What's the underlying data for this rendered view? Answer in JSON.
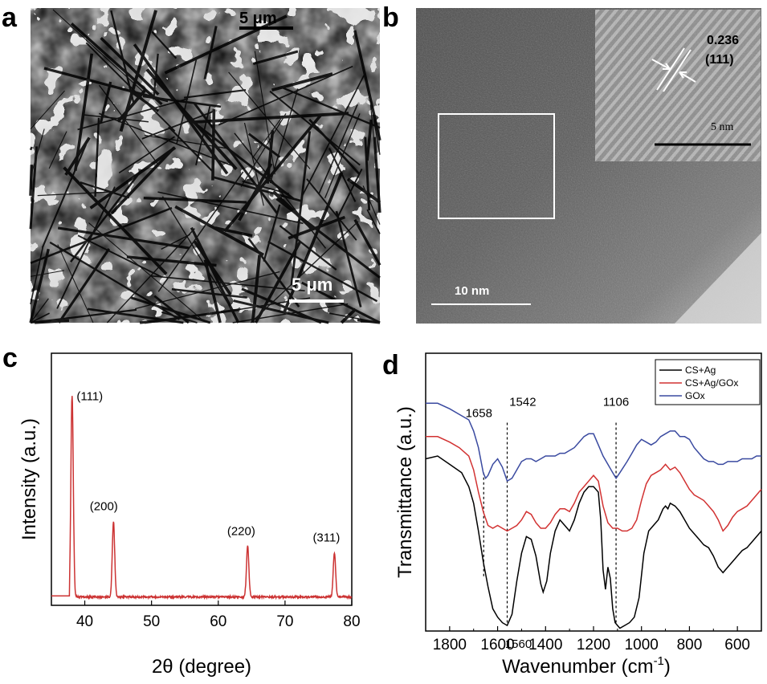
{
  "panels": {
    "a": {
      "label": "a",
      "scalebar_top": "5 μm",
      "scalebar_bottom": "5 μm"
    },
    "b": {
      "label": "b",
      "lattice_spacing": "0.236",
      "lattice_plane": "(111)",
      "inset_scale": "5 nm",
      "scalebar": "10 nm"
    },
    "c": {
      "label": "c"
    },
    "d": {
      "label": "d"
    }
  },
  "colors": {
    "xrd": "#cc3333",
    "cs_ag": "#000000",
    "cs_ag_gox": "#d23232",
    "gox": "#3a4aa0"
  },
  "chart_data": [
    {
      "type": "line",
      "panel": "c",
      "xlabel": "2θ (degree)",
      "ylabel": "Intensity (a.u.)",
      "xlim": [
        35,
        80
      ],
      "ylim": [
        0,
        120
      ],
      "xticks": [
        40,
        50,
        60,
        70,
        80
      ],
      "yticks_shown": false,
      "baseline": 4,
      "peaks": [
        {
          "x": 38.1,
          "y": 100,
          "label": "(111)"
        },
        {
          "x": 44.3,
          "y": 40,
          "label": "(200)"
        },
        {
          "x": 64.4,
          "y": 28,
          "label": "(220)"
        },
        {
          "x": 77.4,
          "y": 25,
          "label": "(311)"
        }
      ]
    },
    {
      "type": "line",
      "panel": "d",
      "xlabel": "Wavenumber (cm",
      "xlabel_sup": "-1",
      "xlabel_end": ")",
      "ylabel": "Transmittance (a.u.)",
      "xlim": [
        1900,
        500
      ],
      "ylim": [
        0,
        100
      ],
      "xticks": [
        1800,
        1600,
        1400,
        1200,
        1000,
        800,
        600
      ],
      "yticks_shown": false,
      "legend_position": "top-right",
      "annotations": [
        {
          "x": 1658,
          "label": "1658"
        },
        {
          "x": 1542,
          "label": "1542"
        },
        {
          "x": 1106,
          "label": "1106"
        },
        {
          "x": 1560,
          "label": "1560"
        }
      ],
      "series": [
        {
          "name": "CS+Ag",
          "color": "#000000",
          "points": [
            [
              1900,
              62
            ],
            [
              1850,
              63
            ],
            [
              1800,
              60
            ],
            [
              1750,
              57
            ],
            [
              1720,
              52
            ],
            [
              1700,
              46
            ],
            [
              1680,
              36
            ],
            [
              1660,
              25
            ],
            [
              1640,
              16
            ],
            [
              1620,
              8
            ],
            [
              1600,
              5
            ],
            [
              1580,
              3
            ],
            [
              1560,
              2
            ],
            [
              1540,
              6
            ],
            [
              1520,
              18
            ],
            [
              1500,
              28
            ],
            [
              1480,
              34
            ],
            [
              1460,
              33
            ],
            [
              1440,
              27
            ],
            [
              1420,
              17
            ],
            [
              1410,
              14
            ],
            [
              1395,
              18
            ],
            [
              1380,
              28
            ],
            [
              1360,
              36
            ],
            [
              1340,
              40
            ],
            [
              1320,
              38
            ],
            [
              1300,
              36
            ],
            [
              1280,
              40
            ],
            [
              1260,
              46
            ],
            [
              1240,
              50
            ],
            [
              1220,
              52
            ],
            [
              1200,
              52
            ],
            [
              1180,
              50
            ],
            [
              1170,
              40
            ],
            [
              1160,
              22
            ],
            [
              1150,
              15
            ],
            [
              1140,
              23
            ],
            [
              1130,
              19
            ],
            [
              1120,
              8
            ],
            [
              1110,
              3
            ],
            [
              1100,
              2
            ],
            [
              1090,
              1
            ],
            [
              1070,
              2
            ],
            [
              1050,
              3
            ],
            [
              1030,
              5
            ],
            [
              1010,
              12
            ],
            [
              990,
              28
            ],
            [
              970,
              36
            ],
            [
              950,
              38
            ],
            [
              930,
              40
            ],
            [
              910,
              44
            ],
            [
              900,
              45
            ],
            [
              890,
              44
            ],
            [
              880,
              46
            ],
            [
              860,
              45
            ],
            [
              840,
              43
            ],
            [
              820,
              40
            ],
            [
              800,
              37
            ],
            [
              780,
              35
            ],
            [
              760,
              33
            ],
            [
              740,
              31
            ],
            [
              720,
              30
            ],
            [
              700,
              27
            ],
            [
              680,
              23
            ],
            [
              660,
              21
            ],
            [
              640,
              23
            ],
            [
              620,
              25
            ],
            [
              600,
              27
            ],
            [
              580,
              29
            ],
            [
              560,
              30
            ],
            [
              540,
              32
            ],
            [
              520,
              34
            ],
            [
              500,
              36
            ]
          ]
        },
        {
          "name": "CS+Ag/GOx",
          "color": "#d23232",
          "points": [
            [
              1900,
              70
            ],
            [
              1850,
              70
            ],
            [
              1800,
              68
            ],
            [
              1760,
              66
            ],
            [
              1720,
              63
            ],
            [
              1700,
              58
            ],
            [
              1680,
              50
            ],
            [
              1660,
              43
            ],
            [
              1640,
              38
            ],
            [
              1620,
              37
            ],
            [
              1600,
              38
            ],
            [
              1580,
              37
            ],
            [
              1560,
              36
            ],
            [
              1540,
              37
            ],
            [
              1520,
              38
            ],
            [
              1500,
              40
            ],
            [
              1480,
              43
            ],
            [
              1460,
              42
            ],
            [
              1440,
              39
            ],
            [
              1420,
              37
            ],
            [
              1400,
              37
            ],
            [
              1380,
              39
            ],
            [
              1360,
              42
            ],
            [
              1340,
              44
            ],
            [
              1320,
              44
            ],
            [
              1300,
              43
            ],
            [
              1280,
              46
            ],
            [
              1260,
              50
            ],
            [
              1240,
              52
            ],
            [
              1220,
              54
            ],
            [
              1200,
              56
            ],
            [
              1180,
              54
            ],
            [
              1160,
              45
            ],
            [
              1140,
              39
            ],
            [
              1120,
              37
            ],
            [
              1100,
              37
            ],
            [
              1080,
              36
            ],
            [
              1060,
              36
            ],
            [
              1040,
              37
            ],
            [
              1020,
              40
            ],
            [
              1000,
              47
            ],
            [
              980,
              53
            ],
            [
              960,
              56
            ],
            [
              940,
              57
            ],
            [
              920,
              58
            ],
            [
              900,
              60
            ],
            [
              880,
              58
            ],
            [
              860,
              59
            ],
            [
              840,
              57
            ],
            [
              820,
              54
            ],
            [
              800,
              51
            ],
            [
              780,
              49
            ],
            [
              760,
              48
            ],
            [
              740,
              47
            ],
            [
              720,
              45
            ],
            [
              700,
              43
            ],
            [
              680,
              40
            ],
            [
              660,
              36
            ],
            [
              640,
              38
            ],
            [
              620,
              41
            ],
            [
              600,
              43
            ],
            [
              580,
              44
            ],
            [
              560,
              45
            ],
            [
              540,
              47
            ],
            [
              520,
              49
            ],
            [
              500,
              51
            ]
          ]
        },
        {
          "name": "GOx",
          "color": "#3a4aa0",
          "points": [
            [
              1900,
              82
            ],
            [
              1850,
              82
            ],
            [
              1800,
              80
            ],
            [
              1760,
              78
            ],
            [
              1720,
              76
            ],
            [
              1700,
              72
            ],
            [
              1680,
              66
            ],
            [
              1660,
              57
            ],
            [
              1650,
              55
            ],
            [
              1640,
              56
            ],
            [
              1620,
              60
            ],
            [
              1600,
              62
            ],
            [
              1580,
              59
            ],
            [
              1560,
              54
            ],
            [
              1540,
              55
            ],
            [
              1520,
              58
            ],
            [
              1500,
              61
            ],
            [
              1480,
              62
            ],
            [
              1460,
              62
            ],
            [
              1440,
              61
            ],
            [
              1420,
              62
            ],
            [
              1400,
              63
            ],
            [
              1380,
              63
            ],
            [
              1360,
              63
            ],
            [
              1340,
              64
            ],
            [
              1320,
              64
            ],
            [
              1300,
              65
            ],
            [
              1280,
              66
            ],
            [
              1260,
              68
            ],
            [
              1240,
              70
            ],
            [
              1220,
              71
            ],
            [
              1200,
              71
            ],
            [
              1180,
              67
            ],
            [
              1160,
              63
            ],
            [
              1140,
              60
            ],
            [
              1120,
              57
            ],
            [
              1106,
              55
            ],
            [
              1090,
              57
            ],
            [
              1060,
              61
            ],
            [
              1040,
              64
            ],
            [
              1020,
              67
            ],
            [
              1000,
              69
            ],
            [
              980,
              68
            ],
            [
              960,
              67
            ],
            [
              940,
              68
            ],
            [
              920,
              70
            ],
            [
              900,
              71
            ],
            [
              880,
              72
            ],
            [
              860,
              72
            ],
            [
              840,
              70
            ],
            [
              820,
              70
            ],
            [
              800,
              69
            ],
            [
              780,
              66
            ],
            [
              760,
              64
            ],
            [
              740,
              62
            ],
            [
              720,
              61
            ],
            [
              700,
              61
            ],
            [
              680,
              60
            ],
            [
              660,
              60
            ],
            [
              640,
              61
            ],
            [
              620,
              61
            ],
            [
              600,
              61
            ],
            [
              580,
              62
            ],
            [
              560,
              62
            ],
            [
              540,
              62
            ],
            [
              520,
              63
            ],
            [
              500,
              63
            ]
          ]
        }
      ]
    }
  ]
}
